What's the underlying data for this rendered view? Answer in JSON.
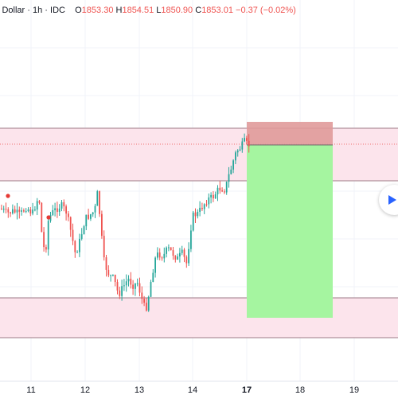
{
  "legend": {
    "symbol": "U.S. Dollar",
    "interval": "1h",
    "source": "IDC",
    "open_label": "O",
    "open": "1853.30",
    "high_label": "H",
    "high": "1854.51",
    "low_label": "L",
    "low": "1850.90",
    "close_label": "C",
    "close": "1853.01",
    "change": "−0.37 (−0.02%)"
  },
  "time_axis": {
    "labels": [
      {
        "text": "11",
        "bold": false
      },
      {
        "text": "12",
        "bold": false
      },
      {
        "text": "13",
        "bold": false
      },
      {
        "text": "14",
        "bold": false
      },
      {
        "text": "17",
        "bold": true
      },
      {
        "text": "18",
        "bold": false
      },
      {
        "text": "19",
        "bold": false
      }
    ]
  },
  "colors": {
    "up": "#26a69a",
    "down": "#ef5350",
    "zone_fill": "#fce4ec",
    "zone_line": "#9e7a86",
    "stop_fill": "#e09a9a",
    "target_fill": "#a5f5a0",
    "grid": "#f0f3fa"
  },
  "play_button_icon": "play-icon"
}
